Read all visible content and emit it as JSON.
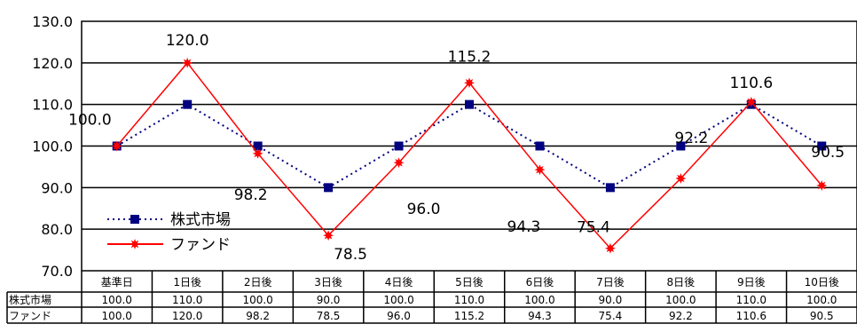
{
  "chart_data": {
    "type": "line",
    "categories": [
      "基準日",
      "1日後",
      "2日後",
      "3日後",
      "4日後",
      "5日後",
      "6日後",
      "7日後",
      "8日後",
      "9日後",
      "10日後"
    ],
    "ylim": [
      70,
      130
    ],
    "yticks": [
      "70.0",
      "80.0",
      "90.0",
      "100.0",
      "110.0",
      "120.0",
      "130.0"
    ],
    "grid": true,
    "legend_position": "bottom-left",
    "series": [
      {
        "name": "株式市場",
        "color": "#000080",
        "line_style": "dotted",
        "marker": "square",
        "values": [
          100.0,
          110.0,
          100.0,
          90.0,
          100.0,
          110.0,
          100.0,
          90.0,
          100.0,
          110.0,
          100.0
        ],
        "table_values": [
          "100.0",
          "110.0",
          "100.0",
          "90.0",
          "100.0",
          "110.0",
          "100.0",
          "90.0",
          "100.0",
          "110.0",
          "100.0"
        ]
      },
      {
        "name": "ファンド",
        "color": "#ff0000",
        "line_style": "solid",
        "marker": "star",
        "values": [
          100.0,
          120.0,
          98.2,
          78.5,
          96.0,
          115.2,
          94.3,
          75.4,
          92.2,
          110.6,
          90.5
        ],
        "table_values": [
          "100.0",
          "120.0",
          "98.2",
          "78.5",
          "96.0",
          "115.2",
          "94.3",
          "75.4",
          "92.2",
          "110.6",
          "90.5"
        ],
        "data_labels": [
          "100.0",
          "120.0",
          "98.2",
          "78.5",
          "96.0",
          "115.2",
          "94.3",
          "75.4",
          "92.2",
          "110.6",
          "90.5"
        ]
      }
    ]
  }
}
